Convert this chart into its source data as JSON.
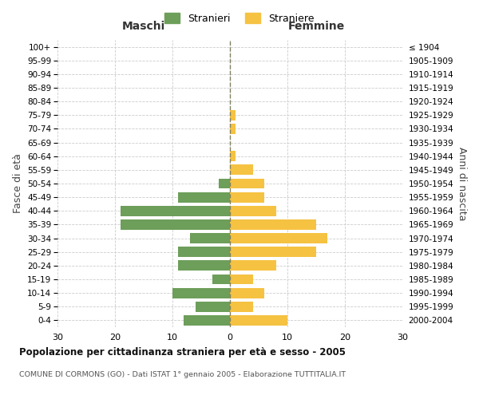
{
  "age_groups": [
    "0-4",
    "5-9",
    "10-14",
    "15-19",
    "20-24",
    "25-29",
    "30-34",
    "35-39",
    "40-44",
    "45-49",
    "50-54",
    "55-59",
    "60-64",
    "65-69",
    "70-74",
    "75-79",
    "80-84",
    "85-89",
    "90-94",
    "95-99",
    "100+"
  ],
  "birth_years": [
    "2000-2004",
    "1995-1999",
    "1990-1994",
    "1985-1989",
    "1980-1984",
    "1975-1979",
    "1970-1974",
    "1965-1969",
    "1960-1964",
    "1955-1959",
    "1950-1954",
    "1945-1949",
    "1940-1944",
    "1935-1939",
    "1930-1934",
    "1925-1929",
    "1920-1924",
    "1915-1919",
    "1910-1914",
    "1905-1909",
    "≤ 1904"
  ],
  "maschi": [
    8,
    6,
    10,
    3,
    9,
    9,
    7,
    19,
    19,
    9,
    2,
    0,
    0,
    0,
    0,
    0,
    0,
    0,
    0,
    0,
    0
  ],
  "femmine": [
    10,
    4,
    6,
    4,
    8,
    15,
    17,
    15,
    8,
    6,
    6,
    4,
    1,
    0,
    1,
    1,
    0,
    0,
    0,
    0,
    0
  ],
  "maschi_color": "#6d9e5a",
  "femmine_color": "#f5c242",
  "grid_color": "#cccccc",
  "center_line_color": "#808060",
  "title": "Popolazione per cittadinanza straniera per età e sesso - 2005",
  "subtitle": "COMUNE DI CORMONS (GO) - Dati ISTAT 1° gennaio 2005 - Elaborazione TUTTITALIA.IT",
  "xlabel_left": "Maschi",
  "xlabel_right": "Femmine",
  "ylabel_left": "Fasce di età",
  "ylabel_right": "Anni di nascita",
  "legend_maschi": "Stranieri",
  "legend_femmine": "Straniere",
  "xlim": 30,
  "background_color": "#ffffff"
}
